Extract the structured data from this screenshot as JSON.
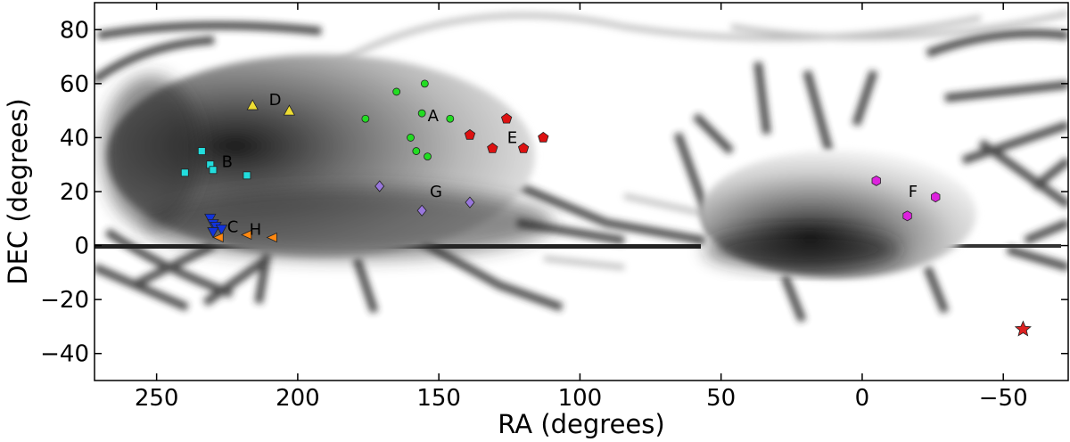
{
  "chart_data": {
    "type": "scatter",
    "title": "",
    "xlabel": "RA (degrees)",
    "ylabel": "DEC (degrees)",
    "xlim": [
      272,
      -73
    ],
    "ylim": [
      -50,
      90
    ],
    "x_reversed": true,
    "grid": false,
    "legend": "none",
    "x_ticks": [
      250,
      200,
      150,
      100,
      50,
      0,
      -50
    ],
    "x_tick_labels": [
      "250",
      "200",
      "150",
      "100",
      "50",
      "0",
      "−50"
    ],
    "y_ticks": [
      80,
      60,
      40,
      20,
      0,
      -20,
      -40
    ],
    "y_tick_labels": [
      "80",
      "60",
      "40",
      "20",
      "0",
      "−20",
      "−40"
    ],
    "background": "grayscale survey footprint density map",
    "series": [
      {
        "label": "A",
        "marker": "circle",
        "color": "#22dd22",
        "points": [
          [
            155,
            60
          ],
          [
            165,
            57
          ],
          [
            176,
            47
          ],
          [
            156,
            49
          ],
          [
            146,
            47
          ],
          [
            160,
            40
          ],
          [
            158,
            35
          ],
          [
            154,
            33
          ]
        ],
        "label_at": [
          152,
          48
        ]
      },
      {
        "label": "B",
        "marker": "square",
        "color": "#22dddd",
        "points": [
          [
            234,
            35
          ],
          [
            231,
            30
          ],
          [
            230,
            28
          ],
          [
            240,
            27
          ],
          [
            218,
            26
          ]
        ],
        "label_at": [
          225,
          31
        ]
      },
      {
        "label": "C",
        "marker": "triangle-down",
        "color": "#1133dd",
        "points": [
          [
            231,
            10
          ],
          [
            230,
            8
          ],
          [
            229,
            7
          ],
          [
            227,
            6
          ],
          [
            230,
            5
          ]
        ],
        "label_at": [
          223,
          7
        ]
      },
      {
        "label": "D",
        "marker": "triangle-up",
        "color": "#eedd33",
        "points": [
          [
            216,
            52
          ],
          [
            203,
            50
          ]
        ],
        "label_at": [
          208,
          54
        ]
      },
      {
        "label": "E",
        "marker": "pentagon",
        "color": "#dd1111",
        "points": [
          [
            126,
            47
          ],
          [
            139,
            41
          ],
          [
            113,
            40
          ],
          [
            131,
            36
          ],
          [
            120,
            36
          ]
        ],
        "label_at": [
          124,
          40
        ]
      },
      {
        "label": "F",
        "marker": "hexagon",
        "color": "#dd22dd",
        "points": [
          [
            -5,
            24
          ],
          [
            -26,
            18
          ],
          [
            -16,
            11
          ]
        ],
        "label_at": [
          -18,
          20
        ]
      },
      {
        "label": "G",
        "marker": "diamond",
        "color": "#9977dd",
        "points": [
          [
            171,
            22
          ],
          [
            139,
            16
          ],
          [
            156,
            13
          ]
        ],
        "label_at": [
          151,
          20
        ]
      },
      {
        "label": "H",
        "marker": "triangle-left",
        "color": "#ff8811",
        "points": [
          [
            228,
            3
          ],
          [
            218,
            4
          ],
          [
            209,
            3
          ]
        ],
        "label_at": [
          215,
          6
        ]
      },
      {
        "label": "",
        "marker": "star",
        "color": "#dd2222",
        "points": [
          [
            -57,
            -31
          ]
        ],
        "label_at": null
      }
    ]
  }
}
